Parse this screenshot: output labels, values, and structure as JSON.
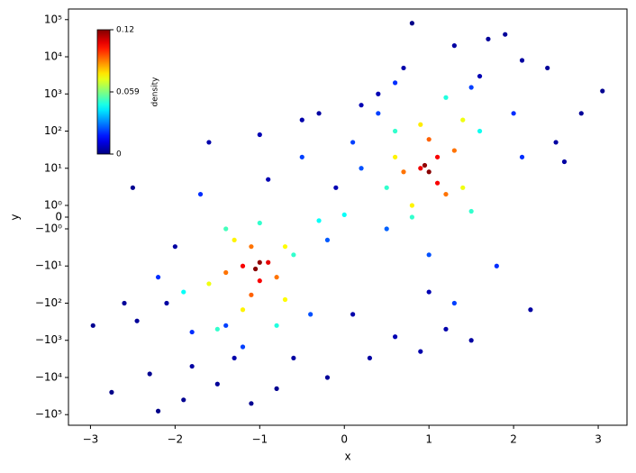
{
  "chart_data": {
    "type": "scatter",
    "xlabel": "x",
    "ylabel": "y",
    "xlim": [
      -3.26,
      3.34
    ],
    "ylim": [
      -193000,
      193000
    ],
    "yscale": "symlog",
    "ylinthresh": 1,
    "ylinscale": 0.315,
    "xticks": [
      {
        "value": -3,
        "label": "−3"
      },
      {
        "value": -2,
        "label": "−2"
      },
      {
        "value": -1,
        "label": "−1"
      },
      0,
      1,
      2,
      3
    ],
    "yticks": [
      {
        "value": 100000,
        "label": "10⁵"
      },
      {
        "value": 10000,
        "label": "10⁴"
      },
      {
        "value": 1000,
        "label": "10³"
      },
      {
        "value": 100,
        "label": "10²"
      },
      {
        "value": 10,
        "label": "10¹"
      },
      {
        "value": 1,
        "label": "10⁰"
      },
      0,
      {
        "value": -1,
        "label": "−10⁰"
      },
      {
        "value": -10,
        "label": "−10¹"
      },
      {
        "value": -100,
        "label": "−10²"
      },
      {
        "value": -1000,
        "label": "−10³"
      },
      {
        "value": -10000,
        "label": "−10⁴"
      },
      {
        "value": -100000,
        "label": "−10⁵"
      }
    ],
    "colormap": "jet",
    "colorbar_label": "density",
    "clim": [
      0,
      0.118
    ],
    "cticks": [
      0,
      0.059,
      {
        "value": 0.118,
        "label": "0.12"
      }
    ],
    "series": [
      {
        "x": [
          -2.97,
          -2.75,
          -2.5,
          -2.45,
          -2.2,
          -2.1,
          -2.3,
          -1.9,
          -1.5,
          -1.1,
          -0.8,
          -0.2,
          -0.6,
          -1.6,
          -1.0,
          -0.5,
          -0.3,
          0.1,
          0.3,
          0.6,
          0.8,
          0.7,
          1.2,
          1.5,
          1.7,
          1.9,
          2.1,
          2.4,
          2.6,
          2.8,
          3.05,
          2.2,
          1.0,
          -2.6,
          -2.0,
          0.4,
          -0.1,
          1.3,
          0.2,
          -1.3,
          -1.8,
          0.9,
          2.5,
          1.6,
          -0.9,
          -2.2,
          -1.8,
          -1.2,
          -0.4,
          -0.5,
          -1.7,
          -0.2,
          0.2,
          0.4,
          0.6,
          1.5,
          2.0,
          1.8,
          1.0,
          0.5,
          1.3,
          2.1,
          0.1,
          -1.4,
          -1.9,
          -1.5,
          -0.8,
          -0.6,
          -1.4,
          -1.0,
          0.5,
          0.6,
          1.2,
          1.6,
          1.5,
          0.8,
          -0.3,
          0.0,
          -1.6,
          -1.2,
          -0.7,
          -0.7,
          -1.3,
          0.6,
          0.9,
          1.4,
          1.4,
          0.8,
          -1.4,
          -1.1,
          -0.8,
          -1.1,
          0.7,
          1.0,
          1.3,
          1.2,
          -1.2,
          -0.9,
          -1.0,
          0.9,
          1.1,
          1.1,
          -1.0,
          -1.05,
          1.0,
          0.95
        ],
        "values": [
          -400,
          -25000,
          3,
          -300,
          -80000,
          -100,
          -8000,
          -40000,
          -15000,
          -50000,
          -20000,
          -10000,
          -3000,
          50,
          80,
          200,
          300,
          -200,
          -3000,
          -800,
          80000,
          5000,
          -500,
          -1000,
          30000,
          40000,
          8000,
          5000,
          15,
          300,
          1200,
          -150,
          -50,
          -100,
          -3,
          1000,
          3,
          20000,
          500,
          -3000,
          -5000,
          -2000,
          50,
          3000,
          5,
          -20,
          -600,
          -1500,
          -200,
          20,
          2,
          -2,
          10,
          300,
          2000,
          1500,
          300,
          -10,
          -5,
          -1,
          -100,
          20,
          50,
          -400,
          -50,
          -500,
          -400,
          -5,
          -1,
          -0.5,
          3,
          100,
          800,
          100,
          0.5,
          0,
          -0.3,
          0.2,
          -30,
          -150,
          -80,
          -3,
          -2,
          20,
          150,
          200,
          3,
          1,
          -15,
          -60,
          -20,
          -3,
          8,
          60,
          30,
          2,
          -10,
          -8,
          -25,
          10,
          20,
          4,
          -8,
          -12,
          8,
          12
        ],
        "density": [
          0.002,
          0.001,
          0.002,
          0.003,
          0.001,
          0.004,
          0.002,
          0.002,
          0.003,
          0.002,
          0.002,
          0.003,
          0.004,
          0.005,
          0.006,
          0.005,
          0.004,
          0.005,
          0.004,
          0.006,
          0.001,
          0.005,
          0.005,
          0.004,
          0.003,
          0.003,
          0.004,
          0.003,
          0.004,
          0.003,
          0.002,
          0.004,
          0.006,
          0.003,
          0.004,
          0.006,
          0.006,
          0.004,
          0.006,
          0.005,
          0.004,
          0.005,
          0.004,
          0.006,
          0.006,
          0.02,
          0.02,
          0.022,
          0.024,
          0.022,
          0.02,
          0.025,
          0.024,
          0.022,
          0.02,
          0.022,
          0.02,
          0.02,
          0.024,
          0.026,
          0.022,
          0.02,
          0.022,
          0.022,
          0.045,
          0.05,
          0.048,
          0.05,
          0.052,
          0.05,
          0.05,
          0.05,
          0.048,
          0.046,
          0.05,
          0.05,
          0.045,
          0.045,
          0.072,
          0.075,
          0.074,
          0.074,
          0.075,
          0.075,
          0.076,
          0.072,
          0.072,
          0.075,
          0.09,
          0.092,
          0.09,
          0.09,
          0.09,
          0.092,
          0.09,
          0.09,
          0.104,
          0.106,
          0.104,
          0.105,
          0.104,
          0.104,
          0.116,
          0.117,
          0.117,
          0.116
        ]
      }
    ]
  }
}
